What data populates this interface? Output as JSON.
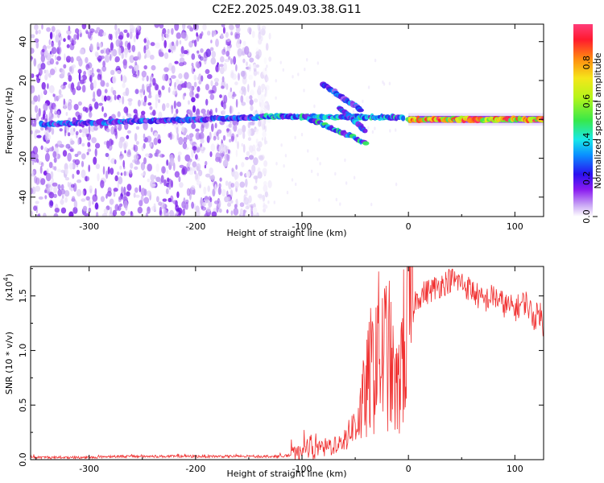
{
  "title": "C2E2.2025.049.03.38.G11",
  "colors": {
    "snr_line": "#f03030",
    "spectrogram_palette": [
      "#ffffff",
      "#d9c6f5",
      "#a86ef0",
      "#7a1be8",
      "#2a16e8",
      "#0a8cff",
      "#19e6e6",
      "#38e84a",
      "#b6f51a",
      "#f5e61a",
      "#ff8a10",
      "#ff1a2e",
      "#ff3d7a"
    ]
  },
  "chart_data": [
    {
      "type": "heatmap",
      "title": "",
      "xlabel": "Height of straight line (km)",
      "ylabel": "Frequency (Hz)",
      "xlim": [
        -355,
        127
      ],
      "ylim": [
        -50,
        49
      ],
      "x_ticks": [
        "-300",
        "-200",
        "-100",
        "0",
        "100"
      ],
      "x_tick_values": [
        -300,
        -200,
        -100,
        0,
        100
      ],
      "y_ticks": [
        "-40",
        "-20",
        "0",
        "20",
        "40"
      ],
      "y_tick_values": [
        -40,
        -20,
        0,
        20,
        40
      ],
      "colorbar": {
        "label": "Normalized spectral amplitude",
        "range": [
          0,
          1
        ],
        "ticks": [
          "0.0",
          "0.2",
          "0.4",
          "0.6",
          "0.8"
        ],
        "tick_values": [
          0.0,
          0.2,
          0.4,
          0.6,
          0.8
        ]
      },
      "features": [
        {
          "kind": "noise_field",
          "x_range": [
            -355,
            -130
          ],
          "freq_range": [
            -50,
            49
          ],
          "amplitude": 0.15
        },
        {
          "kind": "carrier_line",
          "x_range": [
            -345,
            -140
          ],
          "freq_start": -2.5,
          "freq_end": 1.0,
          "amplitude": 0.35
        },
        {
          "kind": "carrier_line",
          "x_range": [
            -140,
            -5
          ],
          "freq_start": 1.5,
          "freq_end": 1.0,
          "amplitude": 0.45
        },
        {
          "kind": "carrier_line",
          "x_range": [
            0,
            127
          ],
          "freq_start": 0.0,
          "freq_end": 0.0,
          "amplitude": 0.95
        },
        {
          "kind": "branch",
          "x_range": [
            -100,
            -40
          ],
          "freq_start": 2,
          "freq_end": -12,
          "amplitude": 0.45
        },
        {
          "kind": "branch",
          "x_range": [
            -80,
            -45
          ],
          "freq_start": 18,
          "freq_end": 5,
          "amplitude": 0.35
        },
        {
          "kind": "branch",
          "x_range": [
            -65,
            -40
          ],
          "freq_start": 6,
          "freq_end": -6,
          "amplitude": 0.4
        }
      ]
    },
    {
      "type": "line",
      "title": "",
      "xlabel": "Height of straight line (km)",
      "ylabel": "SNR (10 * v/v)",
      "y_multiplier": "(x10",
      "y_multiplier_exp": "4",
      "y_multiplier_close": ")",
      "xlim": [
        -355,
        127
      ],
      "ylim": [
        0,
        1.77
      ],
      "x_ticks": [
        "-300",
        "-200",
        "-100",
        "0",
        "100"
      ],
      "x_tick_values": [
        -300,
        -200,
        -100,
        0,
        100
      ],
      "y_ticks": [
        "0.0",
        "0.5",
        "1.0",
        "1.5"
      ],
      "y_tick_values": [
        0.0,
        0.5,
        1.0,
        1.5
      ],
      "series": [
        {
          "x": [
            -355,
            -340,
            -320,
            -300,
            -280,
            -260,
            -240,
            -220,
            -200,
            -180,
            -160,
            -140,
            -120,
            -110,
            -100,
            -95,
            -90,
            -80,
            -70,
            -65,
            -60,
            -55,
            -50,
            -45,
            -40,
            -36,
            -32,
            -30,
            -26,
            -22,
            -18,
            -14,
            -10,
            -6,
            -2,
            0,
            3,
            6,
            10,
            20,
            30,
            40,
            50,
            55,
            60,
            70,
            80,
            90,
            100,
            110,
            118,
            124,
            127
          ],
          "y": [
            0.02,
            0.02,
            0.02,
            0.02,
            0.03,
            0.03,
            0.03,
            0.03,
            0.03,
            0.03,
            0.03,
            0.03,
            0.03,
            0.04,
            0.06,
            0.12,
            0.08,
            0.1,
            0.14,
            0.12,
            0.18,
            0.25,
            0.35,
            0.45,
            0.6,
            0.8,
            0.85,
            1.1,
            0.9,
            1.0,
            0.95,
            0.7,
            0.6,
            1.0,
            1.05,
            1.3,
            1.4,
            1.45,
            1.5,
            1.55,
            1.6,
            1.65,
            1.62,
            1.58,
            1.55,
            1.45,
            1.5,
            1.42,
            1.38,
            1.45,
            1.3,
            1.35,
            1.15
          ]
        }
      ]
    }
  ]
}
